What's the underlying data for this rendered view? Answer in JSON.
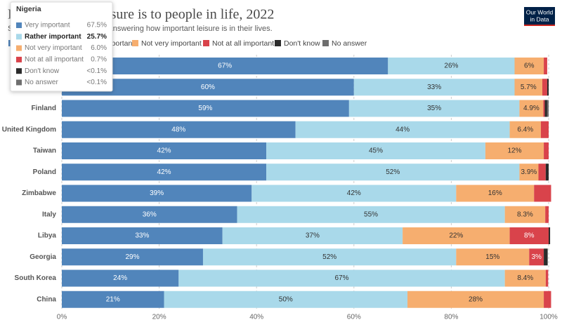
{
  "chart_data": {
    "type": "stacked-bar-horizontal",
    "title": "How important leisure is to people in life, 2022",
    "subtitle": "Share of survey respondents answering how important leisure is in their lives.",
    "categories": [
      null,
      null,
      "Finland",
      "United Kingdom",
      "Taiwan",
      "Poland",
      "Zimbabwe",
      "Italy",
      "Libya",
      "Georgia",
      "South Korea",
      "China"
    ],
    "series": [
      {
        "name": "Very important",
        "color": "#5185bb",
        "values": [
          67,
          60,
          59,
          48,
          42,
          42,
          39,
          36,
          33,
          29,
          24,
          21
        ],
        "value_labels": [
          "67%",
          "60%",
          "59%",
          "48%",
          "42%",
          "42%",
          "39%",
          "36%",
          "33%",
          "29%",
          "24%",
          "21%"
        ]
      },
      {
        "name": "Rather important",
        "color": "#a9d9ea",
        "values": [
          26,
          33,
          35,
          44,
          45,
          52,
          42,
          55,
          37,
          52,
          67,
          50
        ],
        "value_labels": [
          "26%",
          "33%",
          "35%",
          "44%",
          "45%",
          "52%",
          "42%",
          "55%",
          "37%",
          "52%",
          "67%",
          "50%"
        ]
      },
      {
        "name": "Not very important",
        "color": "#f6ae6f",
        "values": [
          6,
          5.7,
          4.9,
          6.4,
          12,
          3.9,
          16,
          8.3,
          22,
          15,
          8.4,
          28
        ],
        "value_labels": [
          "6%",
          "5.7%",
          "4.9%",
          "6.4%",
          "12%",
          "3.9%",
          "16%",
          "8.3%",
          "22%",
          "15%",
          "8.4%",
          "28%"
        ]
      },
      {
        "name": "Not at all important",
        "color": "#d9434b",
        "values": [
          0.7,
          1.0,
          0.3,
          1.6,
          1,
          1.5,
          3.5,
          0.7,
          8,
          3,
          0.5,
          1.5
        ],
        "value_labels": [
          null,
          null,
          null,
          null,
          null,
          null,
          null,
          null,
          "8%",
          "3%",
          null,
          null
        ]
      },
      {
        "name": "Don't know",
        "color": "#2b2b2b",
        "values": [
          0,
          0.3,
          0.5,
          0,
          0,
          0.6,
          0,
          0,
          0.3,
          0.8,
          0,
          0
        ]
      },
      {
        "name": "No answer",
        "color": "#6e6e6e",
        "values": [
          0,
          0,
          0.3,
          0,
          0,
          0,
          0,
          0,
          0,
          0,
          0,
          0
        ]
      }
    ],
    "xlim": [
      0,
      100
    ],
    "xticks": [
      {
        "value": 0,
        "label": "0%"
      },
      {
        "value": 20,
        "label": "20%"
      },
      {
        "value": 40,
        "label": "40%"
      },
      {
        "value": 60,
        "label": "60%"
      },
      {
        "value": 80,
        "label": "80%"
      },
      {
        "value": 100,
        "label": "100%"
      }
    ],
    "grid": true
  },
  "logo": [
    "Our World",
    "in Data"
  ],
  "tooltip": {
    "title": "Nigeria",
    "highlight": 1,
    "rows": [
      {
        "label": "Very important",
        "value": "67.5%"
      },
      {
        "label": "Rather important",
        "value": "25.7%"
      },
      {
        "label": "Not very important",
        "value": "6.0%"
      },
      {
        "label": "Not at all important",
        "value": "0.7%"
      },
      {
        "label": "Don't know",
        "value": "<0.1%"
      },
      {
        "label": "No answer",
        "value": "<0.1%"
      }
    ]
  }
}
